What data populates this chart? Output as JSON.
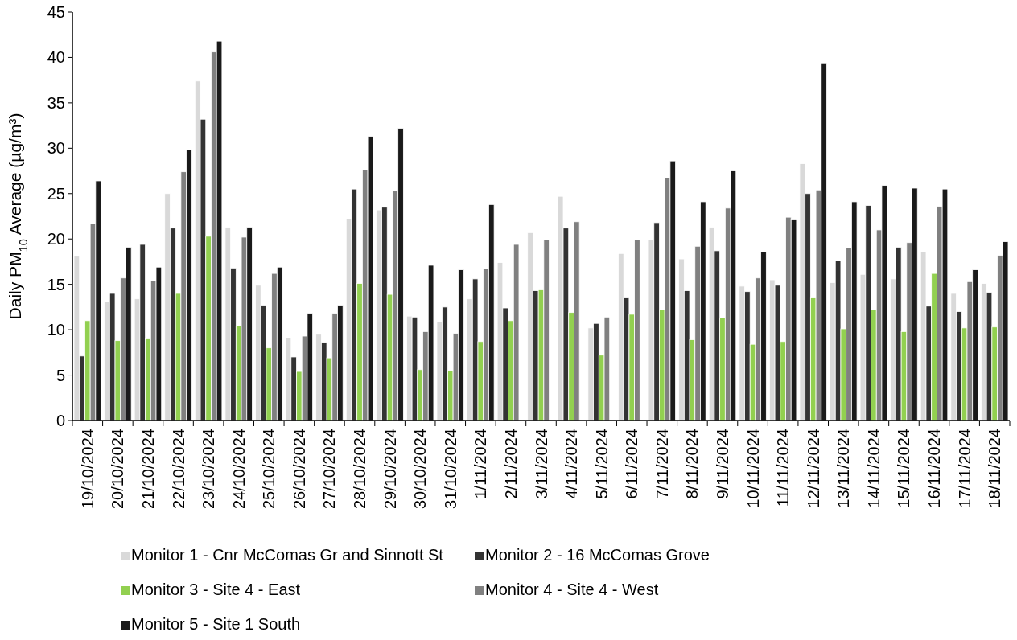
{
  "chart_data": {
    "type": "bar",
    "ylabel": "Daily PM$_{10}$ Average (µg/m³)",
    "categories": [
      "19/10/2024",
      "20/10/2024",
      "21/10/2024",
      "22/10/2024",
      "23/10/2024",
      "24/10/2024",
      "25/10/2024",
      "26/10/2024",
      "27/10/2024",
      "28/10/2024",
      "29/10/2024",
      "30/10/2024",
      "31/10/2024",
      "1/11/2024",
      "2/11/2024",
      "3/11/2024",
      "4/11/2024",
      "5/11/2024",
      "6/11/2024",
      "7/11/2024",
      "8/11/2024",
      "9/11/2024",
      "10/11/2024",
      "11/11/2024",
      "12/11/2024",
      "13/11/2024",
      "14/11/2024",
      "15/11/2024",
      "16/11/2024",
      "17/11/2024",
      "18/11/2024"
    ],
    "series": [
      {
        "name": "Monitor 1 - Cnr McComas Gr and Sinnott St",
        "color": "#d9d9d9",
        "values": [
          18.1,
          13.1,
          13.4,
          25.0,
          37.4,
          21.3,
          14.9,
          9.1,
          9.5,
          22.2,
          23.2,
          11.5,
          10.9,
          13.4,
          17.4,
          20.7,
          24.7,
          10.2,
          18.4,
          19.9,
          17.8,
          21.3,
          14.8,
          15.5,
          28.3,
          15.2,
          16.1,
          15.6,
          18.6,
          14.0,
          15.1
        ]
      },
      {
        "name": "Monitor 2 - 16 McComas Grove",
        "color": "#333333",
        "values": [
          7.1,
          14.0,
          19.4,
          21.2,
          33.2,
          16.8,
          12.7,
          7.0,
          8.6,
          25.5,
          23.5,
          11.4,
          12.5,
          15.6,
          12.4,
          14.3,
          21.2,
          10.7,
          13.5,
          21.8,
          14.3,
          18.7,
          14.2,
          14.9,
          25.0,
          17.6,
          23.7,
          19.1,
          12.6,
          12.0,
          14.1
        ]
      },
      {
        "name": "Monitor 3 - Site 4 - East",
        "color": "#92d050",
        "values": [
          11.0,
          8.8,
          9.0,
          14.0,
          20.3,
          10.4,
          8.0,
          5.4,
          6.9,
          15.1,
          13.9,
          5.6,
          5.5,
          8.7,
          11.0,
          14.4,
          11.9,
          7.2,
          11.7,
          12.2,
          8.9,
          11.3,
          8.4,
          8.7,
          13.5,
          10.1,
          12.2,
          9.8,
          16.2,
          10.2,
          10.3
        ]
      },
      {
        "name": "Monitor 4 - Site 4 - West",
        "color": "#808080",
        "values": [
          21.7,
          15.7,
          15.4,
          27.4,
          40.6,
          20.2,
          16.2,
          9.3,
          11.8,
          27.6,
          25.3,
          9.8,
          9.6,
          16.7,
          19.4,
          19.9,
          21.9,
          11.4,
          19.9,
          26.7,
          19.2,
          23.4,
          15.7,
          22.4,
          25.4,
          19.0,
          21.0,
          19.6,
          23.6,
          15.3,
          18.2
        ]
      },
      {
        "name": "Monitor 5 - Site 1 South",
        "color": "#1a1a1a",
        "values": [
          26.4,
          19.1,
          16.9,
          29.8,
          41.8,
          21.3,
          16.9,
          11.8,
          12.7,
          31.3,
          32.2,
          17.1,
          16.6,
          23.8,
          null,
          null,
          null,
          null,
          null,
          28.6,
          24.1,
          27.5,
          18.6,
          22.1,
          39.4,
          24.1,
          25.9,
          25.6,
          25.5,
          16.6,
          19.7
        ]
      }
    ],
    "ylim": [
      0,
      45
    ],
    "yticks": [
      0,
      5,
      10,
      15,
      20,
      25,
      30,
      35,
      40,
      45
    ],
    "grid": false,
    "legend": "bottom"
  }
}
